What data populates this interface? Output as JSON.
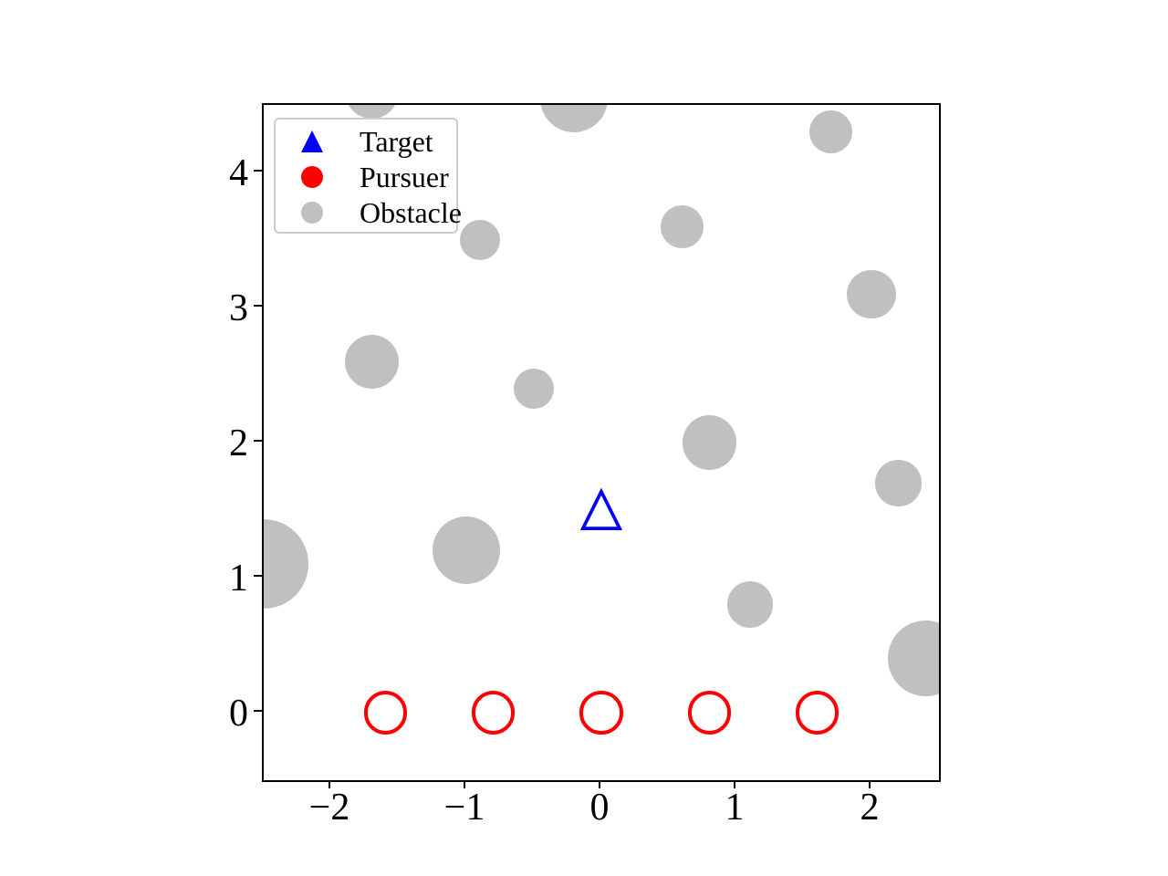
{
  "figure": {
    "background": "#ffffff",
    "title": ""
  },
  "chart_data": {
    "type": "scatter",
    "title": "",
    "xlabel": "",
    "ylabel": "",
    "xlim": [
      -2.5,
      2.5
    ],
    "ylim": [
      -0.5,
      4.5
    ],
    "xticks": [
      -2,
      -1,
      0,
      1,
      2
    ],
    "xtick_labels": [
      "−2",
      "−1",
      "0",
      "1",
      "2"
    ],
    "yticks": [
      0,
      1,
      2,
      3,
      4
    ],
    "ytick_labels": [
      "0",
      "1",
      "2",
      "3",
      "4"
    ],
    "grid": false,
    "legend": {
      "position": "upper-left",
      "entries": [
        {
          "label": "Target",
          "marker": "triangle-up",
          "style": "filled",
          "color": "#0000ff"
        },
        {
          "label": "Pursuer",
          "marker": "circle",
          "style": "filled",
          "color": "#ff0000"
        },
        {
          "label": "Obstacle",
          "marker": "circle",
          "style": "filled",
          "color": "#c0c0c0"
        }
      ]
    },
    "series": [
      {
        "name": "Target",
        "marker": "triangle-up",
        "style": "open",
        "color": "#0000ff",
        "points": [
          {
            "x": 0.0,
            "y": 1.5
          }
        ],
        "marker_size_units": 0.31
      },
      {
        "name": "Pursuer",
        "marker": "circle",
        "style": "open",
        "color": "#ff0000",
        "points": [
          {
            "x": -1.6,
            "y": 0.0
          },
          {
            "x": -0.8,
            "y": 0.0
          },
          {
            "x": 0.0,
            "y": 0.0
          },
          {
            "x": 0.8,
            "y": 0.0
          },
          {
            "x": 1.6,
            "y": 0.0
          }
        ],
        "marker_radius_units": 0.16
      },
      {
        "name": "Obstacle",
        "marker": "circle",
        "style": "filled",
        "color": "#c0c0c0",
        "points": [
          {
            "x": -1.7,
            "y": 4.6,
            "r": 0.2
          },
          {
            "x": -0.2,
            "y": 4.55,
            "r": 0.25
          },
          {
            "x": 1.7,
            "y": 4.3,
            "r": 0.16
          },
          {
            "x": -0.9,
            "y": 3.5,
            "r": 0.15
          },
          {
            "x": 0.6,
            "y": 3.6,
            "r": 0.16
          },
          {
            "x": 2.0,
            "y": 3.1,
            "r": 0.18
          },
          {
            "x": -1.7,
            "y": 2.6,
            "r": 0.2
          },
          {
            "x": -0.5,
            "y": 2.4,
            "r": 0.15
          },
          {
            "x": 0.8,
            "y": 2.0,
            "r": 0.2
          },
          {
            "x": 2.2,
            "y": 1.7,
            "r": 0.17
          },
          {
            "x": -2.5,
            "y": 1.1,
            "r": 0.33
          },
          {
            "x": -1.0,
            "y": 1.2,
            "r": 0.25
          },
          {
            "x": 1.1,
            "y": 0.8,
            "r": 0.17
          },
          {
            "x": 2.4,
            "y": 0.4,
            "r": 0.28
          }
        ]
      }
    ]
  },
  "colors": {
    "target_blue": "#0000ff",
    "pursuer_red": "#ff0000",
    "obstacle_gray": "#c0c0c0",
    "axis_black": "#000000",
    "legend_border": "#cccccc"
  }
}
